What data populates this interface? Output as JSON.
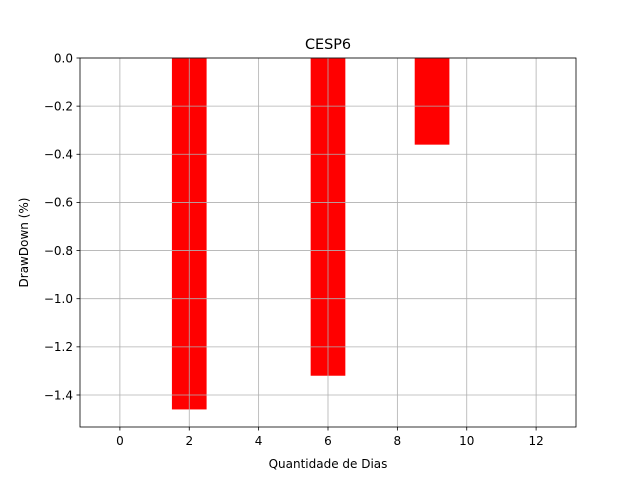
{
  "chart_data": {
    "type": "bar",
    "title": "CESP6",
    "xlabel": "Quantidade de Dias",
    "ylabel": "DrawDown (%)",
    "x": [
      2,
      6,
      9
    ],
    "values": [
      -1.46,
      -1.32,
      -0.36
    ],
    "bar_width": 1,
    "xlim": [
      -1.15,
      13.15
    ],
    "ylim": [
      -1.533,
      0.0
    ],
    "xticks": [
      0,
      2,
      4,
      6,
      8,
      10,
      12
    ],
    "xtick_labels": [
      "0",
      "2",
      "4",
      "6",
      "8",
      "10",
      "12"
    ],
    "yticks": [
      0.0,
      -0.2,
      -0.4,
      -0.6,
      -0.8,
      -1.0,
      -1.2,
      -1.4
    ],
    "ytick_labels": [
      "0.0",
      "−0.2",
      "−0.4",
      "−0.6",
      "−0.8",
      "−1.0",
      "−1.2",
      "−1.4"
    ],
    "grid": true,
    "bar_color": "#ff0000"
  }
}
